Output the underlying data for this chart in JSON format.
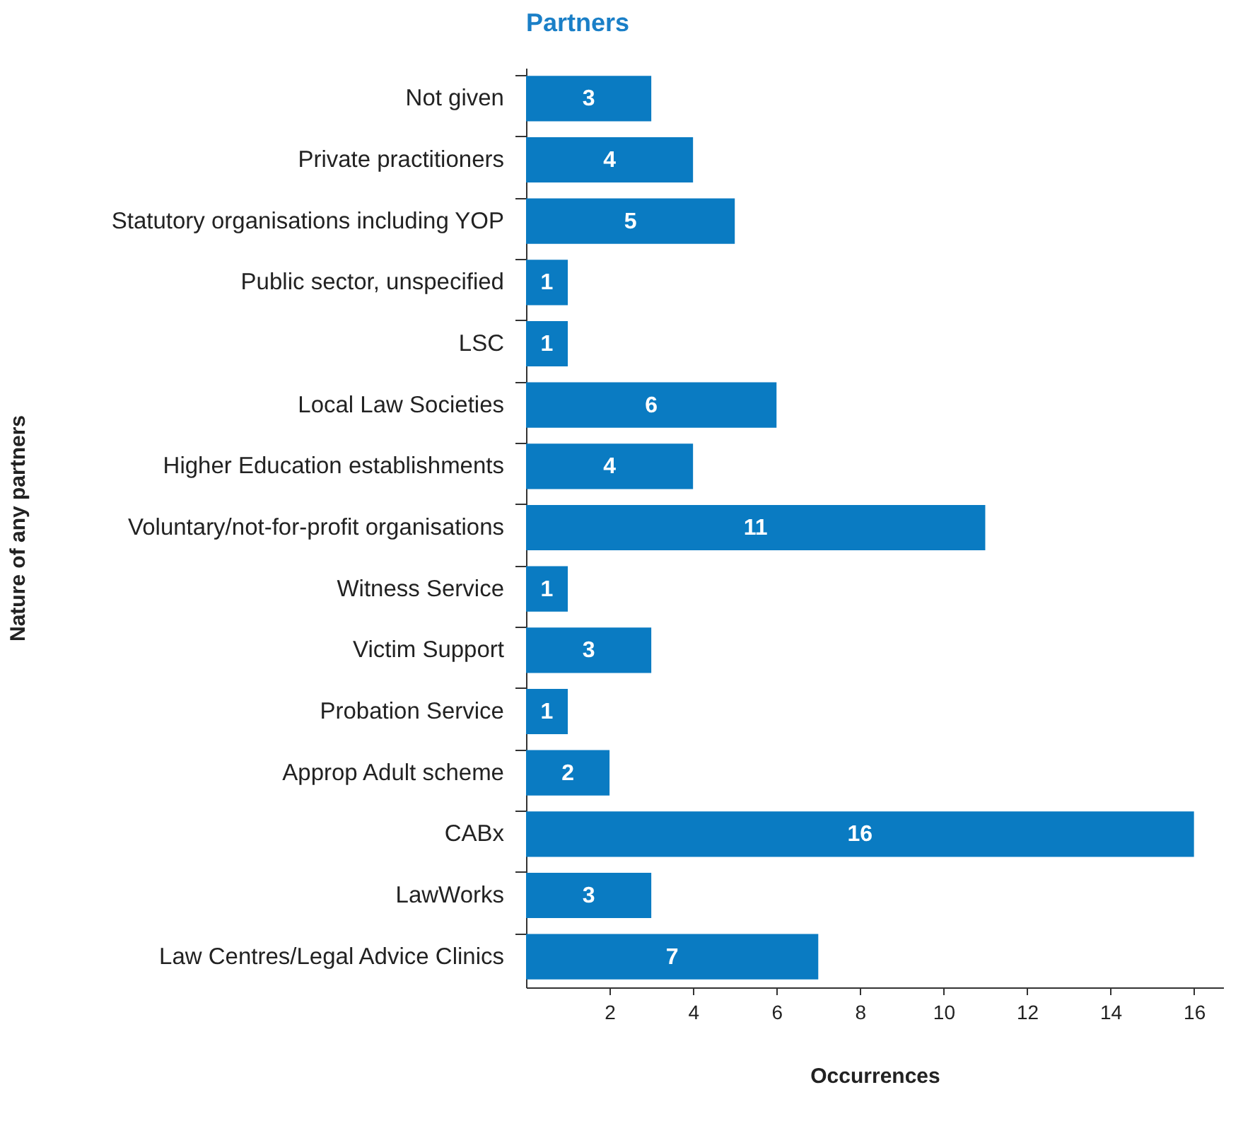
{
  "chart_data": {
    "type": "bar",
    "orientation": "horizontal",
    "title": "Partners",
    "xlabel": "Occurrences",
    "ylabel": "Nature of any partners",
    "categories": [
      "Not given",
      "Private practitioners",
      "Statutory organisations including YOP",
      "Public sector, unspecified",
      "LSC",
      "Local Law Societies",
      "Higher Education establishments",
      "Voluntary/not-for-profit organisations",
      "Witness Service",
      "Victim Support",
      "Probation Service",
      "Approp Adult scheme",
      "CABx",
      "LawWorks",
      "Law Centres/Legal Advice Clinics"
    ],
    "values": [
      3,
      4,
      5,
      1,
      1,
      6,
      4,
      11,
      1,
      3,
      1,
      2,
      16,
      3,
      7
    ],
    "color": "#0a7bc2",
    "xlim": [
      0,
      16.7
    ],
    "xticks": [
      2,
      4,
      6,
      8,
      10,
      12,
      14,
      16
    ],
    "data_labels": true,
    "grid": false
  }
}
